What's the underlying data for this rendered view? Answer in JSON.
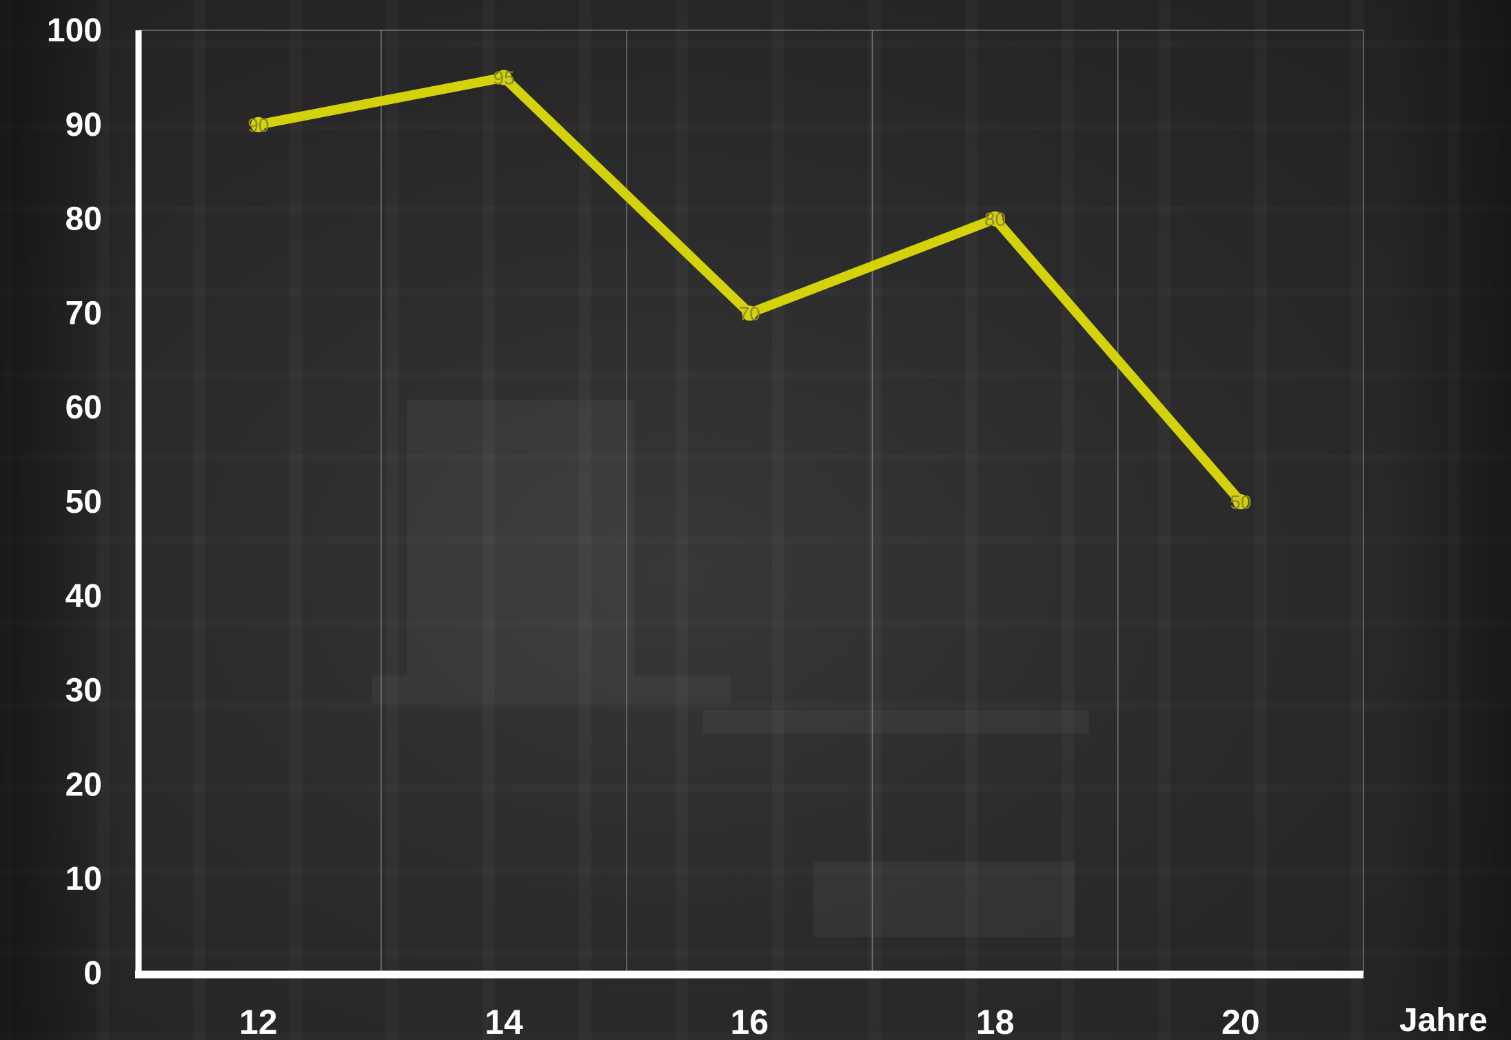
{
  "chart_data": {
    "type": "line",
    "x": [
      12,
      14,
      16,
      18,
      20
    ],
    "y": [
      90,
      95,
      70,
      80,
      50
    ],
    "data_labels": [
      "90",
      "95",
      "70",
      "80",
      "50"
    ],
    "xticks": [
      "12",
      "14",
      "16",
      "18",
      "20"
    ],
    "yticks": [
      "0",
      "10",
      "20",
      "30",
      "40",
      "50",
      "60",
      "70",
      "80",
      "90",
      "100"
    ],
    "xlabel": "Jahre",
    "ylabel": "",
    "title": "",
    "xlim": [
      11.03,
      21
    ],
    "ylim": [
      0,
      100
    ],
    "grid": "vertical",
    "line_color": "#d4d20a",
    "label_color": "#8c8a2a",
    "text_color": "#ffffff",
    "axis_color": "#ffffff",
    "grid_color": "#8a8a8a",
    "background": "dark photo of a warehouse with shelving and a pallet"
  }
}
